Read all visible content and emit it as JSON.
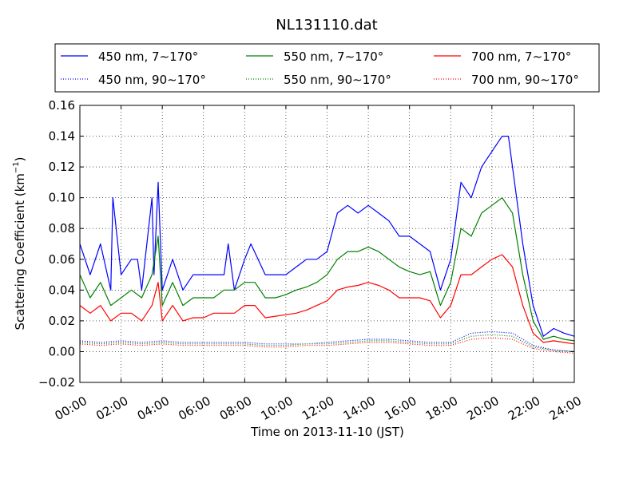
{
  "chart_data": {
    "type": "line",
    "title": "NL131110.dat",
    "xlabel": "Time on 2013-11-10 (JST)",
    "ylabel": "Scattering Coefficient (km",
    "ylabel_sup": "−1",
    "ylabel_close": ")",
    "xlim": [
      0,
      24
    ],
    "ylim": [
      -0.02,
      0.16
    ],
    "x_ticks": [
      0,
      2,
      4,
      6,
      8,
      10,
      12,
      14,
      16,
      18,
      20,
      22,
      24
    ],
    "x_tick_labels": [
      "00:00",
      "02:00",
      "04:00",
      "06:00",
      "08:00",
      "10:00",
      "12:00",
      "14:00",
      "16:00",
      "18:00",
      "20:00",
      "22:00",
      "24:00"
    ],
    "y_ticks": [
      -0.02,
      0.0,
      0.02,
      0.04,
      0.06,
      0.08,
      0.1,
      0.12,
      0.14,
      0.16
    ],
    "y_tick_labels": [
      "−0.02",
      "0.00",
      "0.02",
      "0.04",
      "0.06",
      "0.08",
      "0.10",
      "0.12",
      "0.14",
      "0.16"
    ],
    "grid": true,
    "legend_position": "top, above plot",
    "series": [
      {
        "name": "450 nm, 7∼170°",
        "color": "#0000ff",
        "style": "solid",
        "x": [
          0,
          0.5,
          1,
          1.5,
          1.6,
          2,
          2.5,
          2.8,
          3,
          3.5,
          3.6,
          3.8,
          4,
          4.5,
          5,
          5.5,
          6,
          6.5,
          7,
          7.2,
          7.5,
          8,
          8.3,
          9,
          9.5,
          10,
          10.5,
          11,
          11.5,
          12,
          12.5,
          13,
          13.5,
          14,
          14.5,
          15,
          15.5,
          16,
          16.5,
          17,
          17.5,
          18,
          18.5,
          19,
          19.5,
          20,
          20.5,
          20.8,
          21,
          21.5,
          22,
          22.5,
          23,
          23.5,
          24
        ],
        "y": [
          0.07,
          0.05,
          0.07,
          0.04,
          0.1,
          0.05,
          0.06,
          0.06,
          0.04,
          0.1,
          0.05,
          0.11,
          0.04,
          0.06,
          0.04,
          0.05,
          0.05,
          0.05,
          0.05,
          0.07,
          0.04,
          0.06,
          0.07,
          0.05,
          0.05,
          0.05,
          0.055,
          0.06,
          0.06,
          0.065,
          0.09,
          0.095,
          0.09,
          0.095,
          0.09,
          0.085,
          0.075,
          0.075,
          0.07,
          0.065,
          0.04,
          0.06,
          0.11,
          0.1,
          0.12,
          0.13,
          0.14,
          0.14,
          0.12,
          0.07,
          0.03,
          0.01,
          0.015,
          0.012,
          0.01
        ]
      },
      {
        "name": "550 nm, 7∼170°",
        "color": "#008000",
        "style": "solid",
        "x": [
          0,
          0.5,
          1,
          1.5,
          2,
          2.5,
          3,
          3.5,
          3.8,
          4,
          4.5,
          5,
          5.5,
          6,
          6.5,
          7,
          7.5,
          8,
          8.5,
          9,
          9.5,
          10,
          10.5,
          11,
          11.5,
          12,
          12.5,
          13,
          13.5,
          14,
          14.5,
          15,
          15.5,
          16,
          16.5,
          17,
          17.5,
          18,
          18.5,
          19,
          19.5,
          20,
          20.5,
          21,
          21.5,
          22,
          22.5,
          23,
          23.5,
          24
        ],
        "y": [
          0.05,
          0.035,
          0.045,
          0.03,
          0.035,
          0.04,
          0.035,
          0.05,
          0.075,
          0.03,
          0.045,
          0.03,
          0.035,
          0.035,
          0.035,
          0.04,
          0.04,
          0.045,
          0.045,
          0.035,
          0.035,
          0.037,
          0.04,
          0.042,
          0.045,
          0.05,
          0.06,
          0.065,
          0.065,
          0.068,
          0.065,
          0.06,
          0.055,
          0.052,
          0.05,
          0.052,
          0.03,
          0.045,
          0.08,
          0.075,
          0.09,
          0.095,
          0.1,
          0.09,
          0.05,
          0.02,
          0.008,
          0.01,
          0.008,
          0.007
        ]
      },
      {
        "name": "700 nm, 7∼170°",
        "color": "#ff0000",
        "style": "solid",
        "x": [
          0,
          0.5,
          1,
          1.5,
          2,
          2.5,
          3,
          3.5,
          3.8,
          4,
          4.5,
          5,
          5.5,
          6,
          6.5,
          7,
          7.5,
          8,
          8.5,
          9,
          9.5,
          10,
          10.5,
          11,
          11.5,
          12,
          12.5,
          13,
          13.5,
          14,
          14.5,
          15,
          15.5,
          16,
          16.5,
          17,
          17.5,
          18,
          18.5,
          19,
          19.5,
          20,
          20.5,
          21,
          21.5,
          22,
          22.5,
          23,
          23.5,
          24
        ],
        "y": [
          0.03,
          0.025,
          0.03,
          0.02,
          0.025,
          0.025,
          0.02,
          0.03,
          0.045,
          0.02,
          0.03,
          0.02,
          0.022,
          0.022,
          0.025,
          0.025,
          0.025,
          0.03,
          0.03,
          0.022,
          0.023,
          0.024,
          0.025,
          0.027,
          0.03,
          0.033,
          0.04,
          0.042,
          0.043,
          0.045,
          0.043,
          0.04,
          0.035,
          0.035,
          0.035,
          0.033,
          0.022,
          0.03,
          0.05,
          0.05,
          0.055,
          0.06,
          0.063,
          0.055,
          0.03,
          0.012,
          0.006,
          0.007,
          0.006,
          0.005
        ]
      },
      {
        "name": "450 nm, 90∼170°",
        "color": "#0000ff",
        "style": "dotted",
        "x": [
          0,
          1,
          2,
          3,
          4,
          5,
          6,
          7,
          8,
          9,
          10,
          11,
          12,
          13,
          14,
          15,
          16,
          17,
          18,
          19,
          20,
          21,
          22,
          23,
          24
        ],
        "y": [
          0.007,
          0.006,
          0.007,
          0.006,
          0.007,
          0.006,
          0.006,
          0.006,
          0.006,
          0.005,
          0.005,
          0.005,
          0.006,
          0.007,
          0.008,
          0.008,
          0.007,
          0.006,
          0.006,
          0.012,
          0.013,
          0.012,
          0.004,
          0.001,
          0.0
        ]
      },
      {
        "name": "550 nm, 90∼170°",
        "color": "#008000",
        "style": "dotted",
        "x": [
          0,
          1,
          2,
          3,
          4,
          5,
          6,
          7,
          8,
          9,
          10,
          11,
          12,
          13,
          14,
          15,
          16,
          17,
          18,
          19,
          20,
          21,
          22,
          23,
          24
        ],
        "y": [
          0.006,
          0.005,
          0.006,
          0.005,
          0.006,
          0.005,
          0.005,
          0.005,
          0.005,
          0.004,
          0.004,
          0.005,
          0.005,
          0.006,
          0.007,
          0.007,
          0.006,
          0.005,
          0.005,
          0.01,
          0.011,
          0.01,
          0.003,
          0.001,
          0.0
        ]
      },
      {
        "name": "700 nm, 90∼170°",
        "color": "#ff0000",
        "style": "dotted",
        "x": [
          0,
          1,
          2,
          3,
          4,
          5,
          6,
          7,
          8,
          9,
          10,
          11,
          12,
          13,
          14,
          15,
          16,
          17,
          18,
          19,
          20,
          21,
          22,
          23,
          24
        ],
        "y": [
          0.005,
          0.004,
          0.005,
          0.004,
          0.005,
          0.004,
          0.004,
          0.004,
          0.004,
          0.003,
          0.003,
          0.004,
          0.004,
          0.005,
          0.006,
          0.006,
          0.005,
          0.004,
          0.004,
          0.008,
          0.009,
          0.008,
          0.002,
          0.0,
          -0.001
        ]
      }
    ]
  }
}
